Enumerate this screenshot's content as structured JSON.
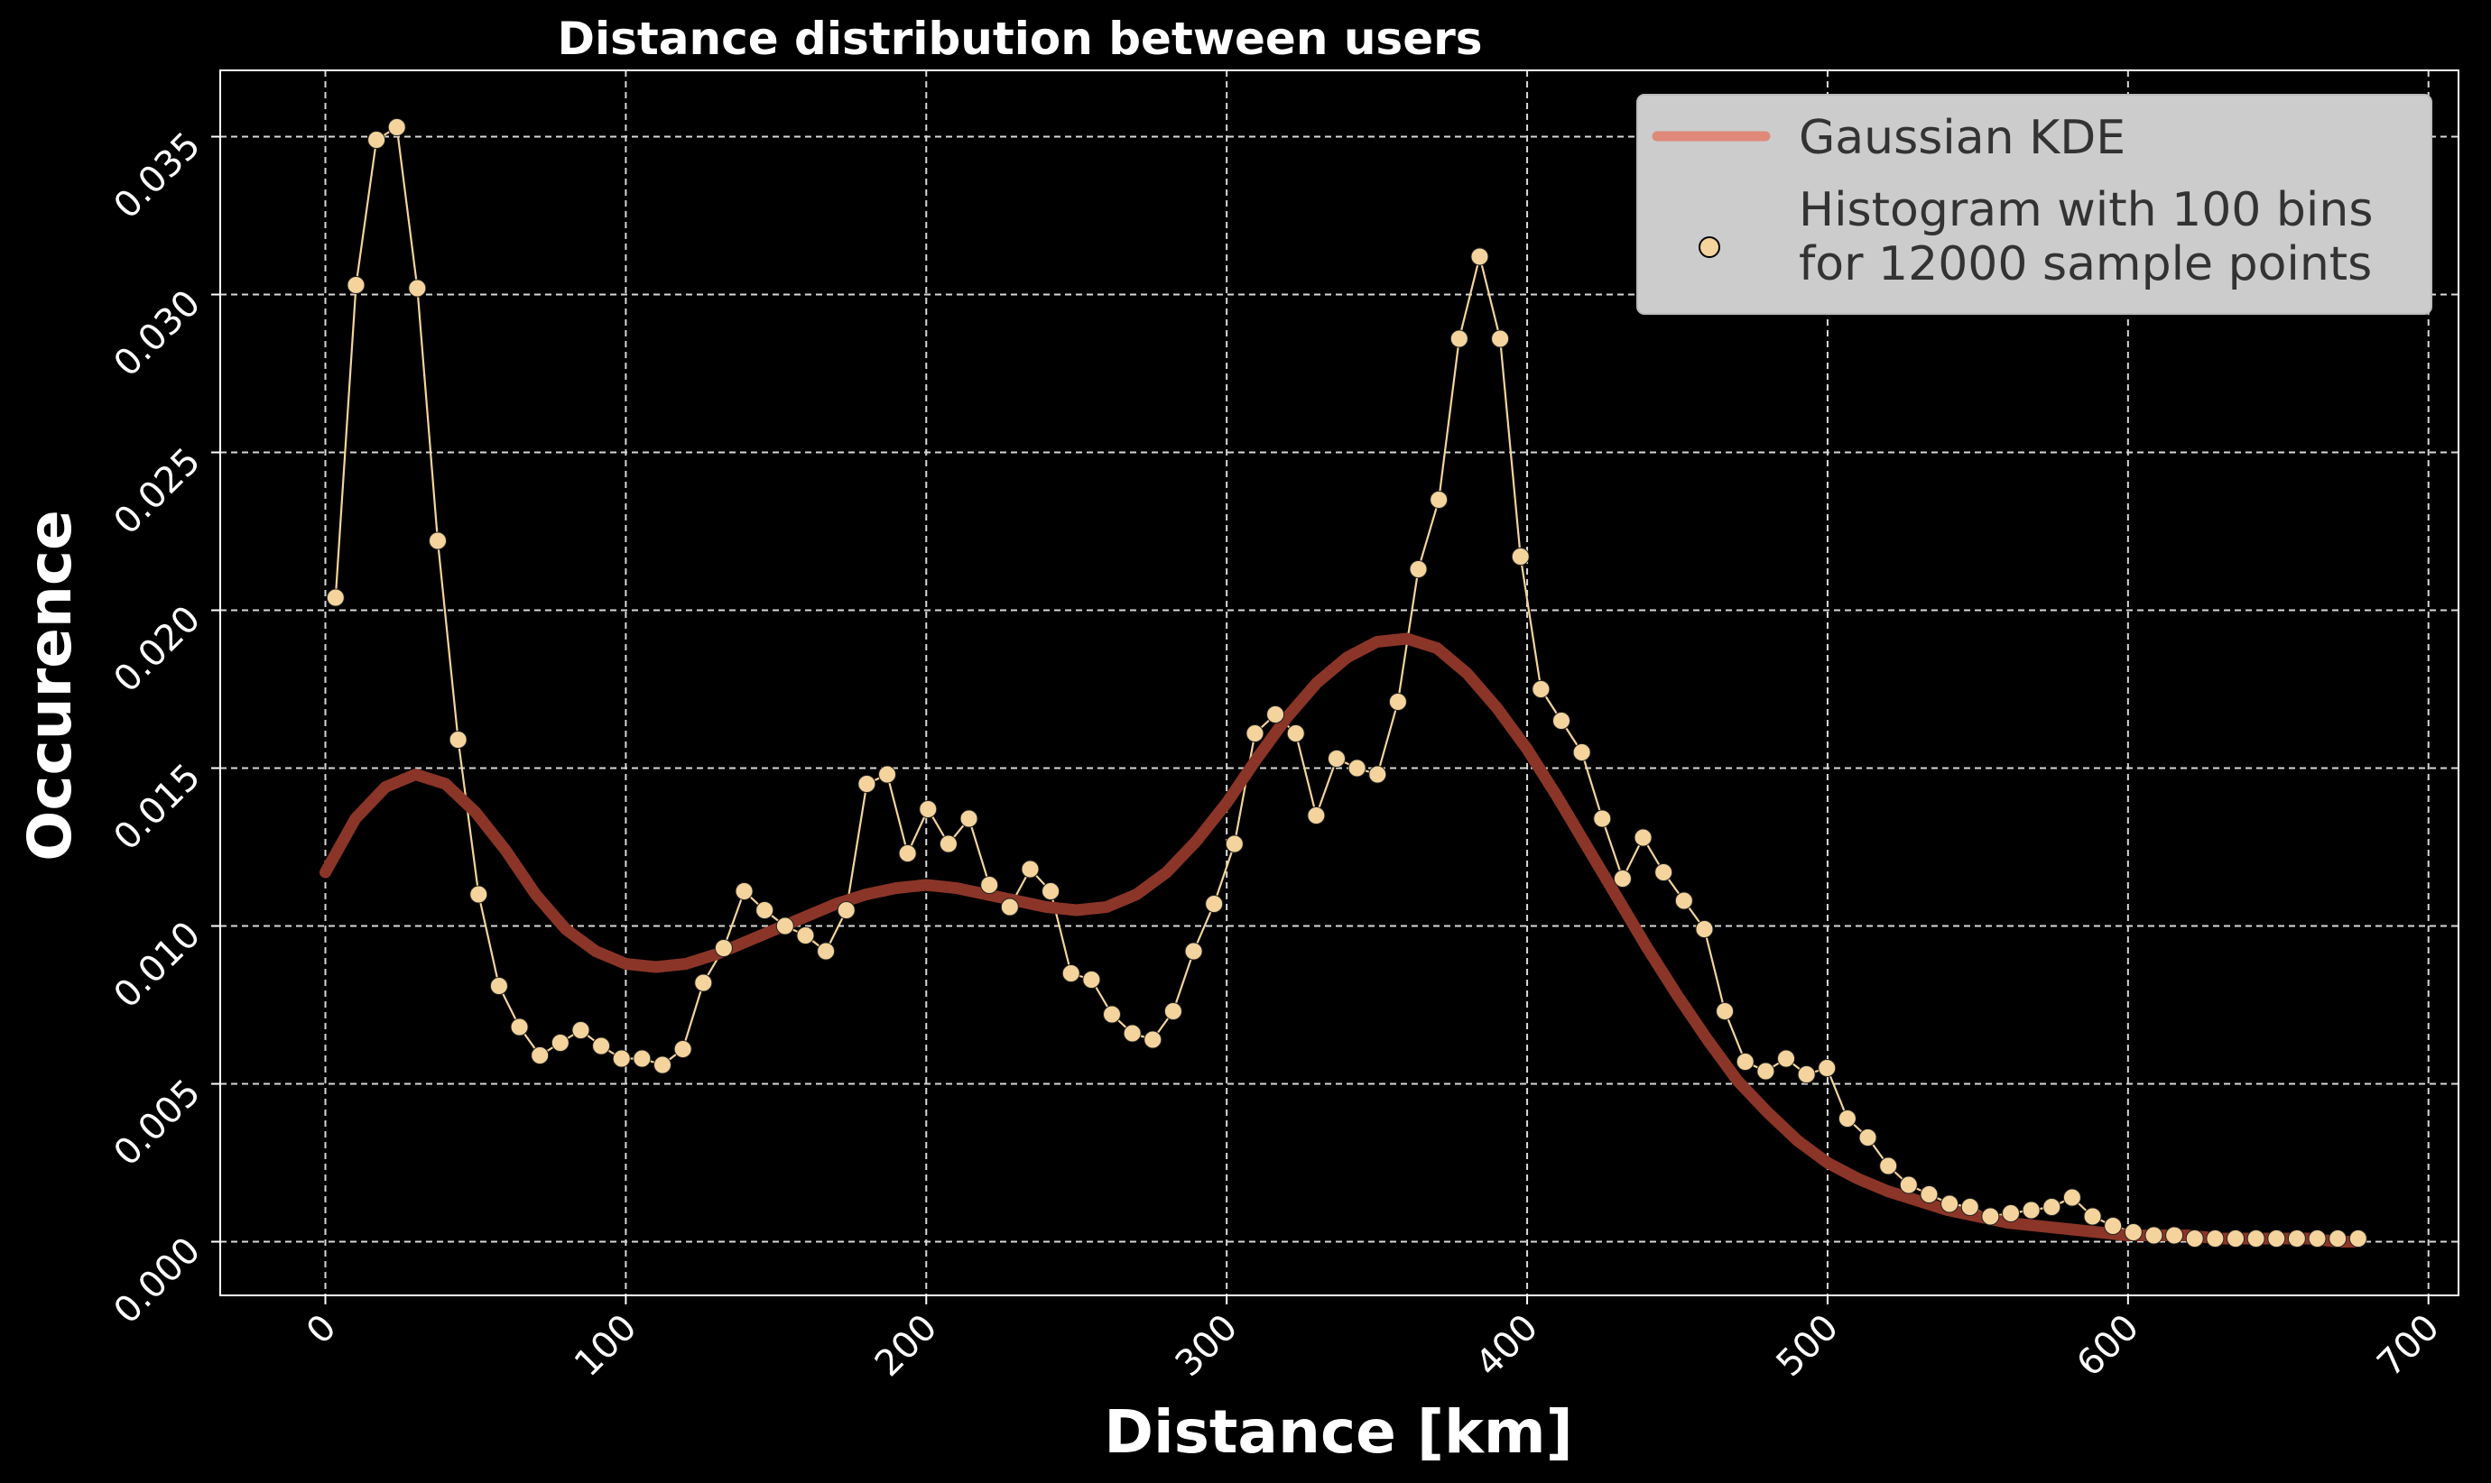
{
  "chart_data": {
    "type": "line",
    "title": "Distance distribution between users",
    "xlabel": "Distance [km]",
    "ylabel": "Occurence",
    "xlim": [
      -35,
      710
    ],
    "ylim": [
      -0.0017,
      0.0371
    ],
    "xticks": [
      0,
      100,
      200,
      300,
      400,
      500,
      600,
      700
    ],
    "xtick_labels": [
      "0",
      "100",
      "200",
      "300",
      "400",
      "500",
      "600",
      "700"
    ],
    "yticks": [
      0,
      0.005,
      0.01,
      0.015,
      0.02,
      0.025,
      0.03,
      0.035
    ],
    "ytick_labels": [
      "0.000",
      "0.005",
      "0.010",
      "0.015",
      "0.020",
      "0.025",
      "0.030",
      "0.035"
    ],
    "grid": true,
    "legend_position": "top-right",
    "colors": {
      "kde": "#8b3528",
      "kde_legend": "#e0897a",
      "hist": "#f4d49c"
    },
    "series": [
      {
        "name": "Gaussian KDE",
        "kind": "line",
        "x": [
          0,
          10,
          20,
          30,
          40,
          50,
          60,
          70,
          80,
          90,
          100,
          110,
          120,
          130,
          140,
          150,
          160,
          170,
          180,
          190,
          200,
          210,
          220,
          230,
          240,
          250,
          260,
          270,
          280,
          290,
          300,
          310,
          320,
          330,
          340,
          350,
          360,
          370,
          380,
          390,
          400,
          410,
          420,
          430,
          440,
          450,
          460,
          470,
          480,
          490,
          500,
          510,
          520,
          530,
          540,
          550,
          560,
          570,
          580,
          590,
          600,
          610,
          620,
          630,
          640,
          650,
          660,
          670,
          677
        ],
        "values": [
          0.0117,
          0.0134,
          0.0144,
          0.0148,
          0.0145,
          0.0136,
          0.0124,
          0.011,
          0.0099,
          0.0092,
          0.0088,
          0.0087,
          0.0088,
          0.0091,
          0.0095,
          0.0099,
          0.0103,
          0.0107,
          0.011,
          0.0112,
          0.0113,
          0.0112,
          0.011,
          0.0108,
          0.0106,
          0.0105,
          0.0106,
          0.011,
          0.0117,
          0.0127,
          0.0139,
          0.0153,
          0.0166,
          0.0177,
          0.0185,
          0.019,
          0.0191,
          0.0188,
          0.018,
          0.0169,
          0.0156,
          0.0141,
          0.0125,
          0.0109,
          0.0093,
          0.0078,
          0.0064,
          0.0051,
          0.0041,
          0.0032,
          0.0025,
          0.002,
          0.0016,
          0.0013,
          0.001,
          0.0008,
          0.0006,
          0.0005,
          0.0004,
          0.0003,
          0.0002,
          0.0002,
          0.0002,
          0.0001,
          0.0001,
          0.0001,
          0.0001,
          0.0,
          0.0
        ]
      },
      {
        "name": "Histogram with 100 bins\nfor 12000 sample points",
        "kind": "line-markers",
        "x": [
          3.4,
          10.2,
          17.0,
          23.8,
          30.6,
          37.4,
          44.2,
          51.0,
          57.8,
          64.6,
          71.4,
          78.2,
          85.0,
          91.8,
          98.6,
          105.4,
          112.2,
          119.0,
          125.8,
          132.6,
          139.4,
          146.2,
          153.0,
          159.8,
          166.6,
          173.4,
          180.2,
          187.0,
          193.8,
          200.6,
          207.4,
          214.2,
          221.0,
          227.8,
          234.6,
          241.4,
          248.2,
          255.0,
          261.8,
          268.6,
          275.4,
          282.2,
          289.0,
          295.8,
          302.6,
          309.4,
          316.2,
          323.0,
          329.8,
          336.6,
          343.4,
          350.2,
          357.0,
          363.8,
          370.6,
          377.4,
          384.2,
          391.0,
          397.8,
          404.6,
          411.4,
          418.2,
          425.0,
          431.8,
          438.6,
          445.4,
          452.2,
          459.0,
          465.8,
          472.6,
          479.4,
          486.2,
          493.0,
          499.8,
          506.6,
          513.4,
          520.2,
          527.0,
          533.8,
          540.6,
          547.4,
          554.2,
          561.0,
          567.8,
          574.6,
          581.4,
          588.2,
          595.0,
          601.8,
          608.6,
          615.4,
          622.2,
          629.0,
          635.8,
          642.6,
          649.4,
          656.2,
          663.0,
          669.8,
          676.6
        ],
        "values": [
          0.0204,
          0.0303,
          0.0349,
          0.0353,
          0.0302,
          0.0222,
          0.0159,
          0.011,
          0.0081,
          0.0068,
          0.0059,
          0.0063,
          0.0067,
          0.0062,
          0.0058,
          0.0058,
          0.0056,
          0.0061,
          0.0082,
          0.0093,
          0.0111,
          0.0105,
          0.01,
          0.0097,
          0.0092,
          0.0105,
          0.0145,
          0.0148,
          0.0123,
          0.0137,
          0.0126,
          0.0134,
          0.0113,
          0.0106,
          0.0118,
          0.0111,
          0.0085,
          0.0083,
          0.0072,
          0.0066,
          0.0064,
          0.0073,
          0.0092,
          0.0107,
          0.0126,
          0.0161,
          0.0167,
          0.0161,
          0.0135,
          0.0153,
          0.015,
          0.0148,
          0.0171,
          0.0213,
          0.0235,
          0.0286,
          0.0312,
          0.0286,
          0.0217,
          0.0175,
          0.0165,
          0.0155,
          0.0134,
          0.0115,
          0.0128,
          0.0117,
          0.0108,
          0.0099,
          0.0073,
          0.0057,
          0.0054,
          0.0058,
          0.0053,
          0.0055,
          0.0039,
          0.0033,
          0.0024,
          0.0018,
          0.0015,
          0.0012,
          0.0011,
          0.0008,
          0.0009,
          0.001,
          0.0011,
          0.0014,
          0.0008,
          0.0005,
          0.0003,
          0.0002,
          0.0002,
          0.0001,
          0.0001,
          0.0001,
          0.0001,
          0.0001,
          0.0001,
          0.0001,
          0.0001,
          0.0001
        ]
      }
    ]
  }
}
